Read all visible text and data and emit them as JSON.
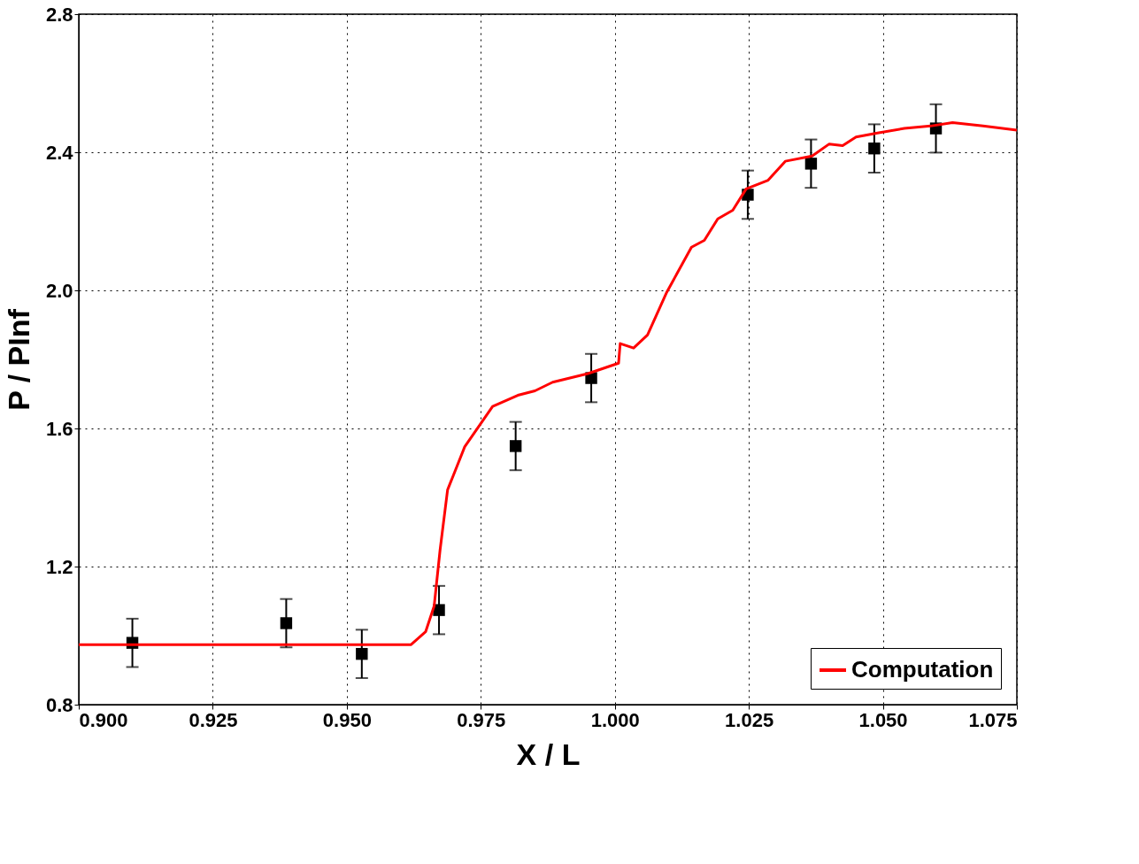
{
  "chart_data": {
    "type": "line",
    "xlabel": "X / L",
    "ylabel": "P / PInf",
    "xlim": [
      0.9,
      1.075
    ],
    "xticks": [
      {
        "value": 0.9,
        "label": "0.900"
      },
      0.925,
      {
        "value": 0.95,
        "label": "0.950"
      },
      0.975,
      {
        "value": 1.0,
        "label": "1.000"
      },
      1.025,
      {
        "value": 1.05,
        "label": "1.050"
      },
      1.075
    ],
    "ylim": [
      0.8,
      2.8
    ],
    "yticks": [
      0.8,
      1.2,
      1.6,
      {
        "value": 2.0,
        "label": "2.0"
      },
      2.4,
      2.8
    ],
    "grid": true,
    "legend": "bottom right",
    "series": [
      {
        "type": "scatter",
        "marker": "square",
        "color": "#000000",
        "x": [
          0.91,
          0.9387,
          0.9528,
          0.9672,
          0.9815,
          0.9956,
          1.0248,
          1.0366,
          1.0484,
          1.0599
        ],
        "values": [
          0.979,
          1.036,
          0.947,
          1.074,
          1.549,
          1.746,
          2.277,
          2.367,
          2.411,
          2.469
        ],
        "errors": [
          0.07,
          0.07,
          0.07,
          0.07,
          0.07,
          0.07,
          0.07,
          0.07,
          0.07,
          0.07
        ]
      },
      {
        "name": "Computation",
        "color": "#ff0000",
        "line_style": "solid",
        "x": [
          0.9,
          0.962,
          0.9647,
          0.9663,
          0.9674,
          0.9688,
          0.972,
          0.9772,
          0.9819,
          0.9851,
          0.9884,
          0.995,
          1.0007,
          1.001,
          1.0035,
          1.0061,
          1.0097,
          1.0143,
          1.0167,
          1.0192,
          1.022,
          1.0245,
          1.0286,
          1.0318,
          1.0368,
          1.04,
          1.0425,
          1.045,
          1.049,
          1.054,
          1.0589,
          1.063,
          1.0687,
          1.075
        ],
        "values": [
          0.974,
          0.974,
          1.011,
          1.086,
          1.248,
          1.422,
          1.547,
          1.664,
          1.696,
          1.709,
          1.734,
          1.759,
          1.789,
          1.846,
          1.833,
          1.871,
          1.995,
          2.125,
          2.145,
          2.207,
          2.232,
          2.294,
          2.319,
          2.374,
          2.389,
          2.424,
          2.419,
          2.444,
          2.456,
          2.469,
          2.476,
          2.486,
          2.476,
          2.464
        ]
      }
    ]
  }
}
